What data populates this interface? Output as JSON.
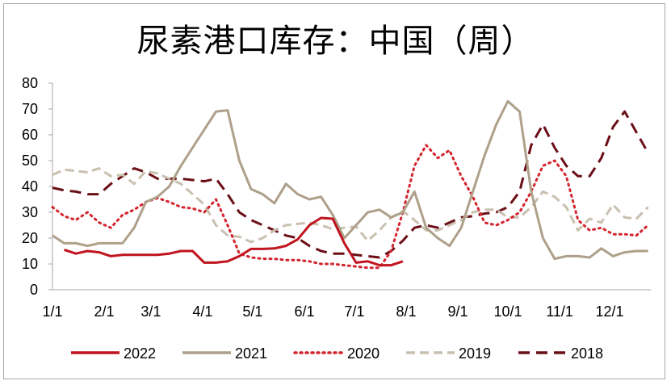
{
  "title": "尿素港口库存：中国（周）",
  "chart_data": {
    "type": "line",
    "title": "尿素港口库存：中国（周）",
    "xlabel": "",
    "ylabel": "",
    "ylim": [
      0,
      80
    ],
    "yticks": [
      "0",
      "10",
      "20",
      "30",
      "40",
      "50",
      "60",
      "70",
      "80"
    ],
    "xticks": [
      "1/1",
      "2/1",
      "3/1",
      "4/1",
      "5/1",
      "6/1",
      "7/1",
      "8/1",
      "9/1",
      "10/1",
      "11/1",
      "12/1"
    ],
    "grid": false,
    "legend_position": "bottom",
    "x_unit": "day of year",
    "series": [
      {
        "name": "2022",
        "color": "#c0141e",
        "style": "solid",
        "width": 3,
        "x": [
          7,
          14,
          21,
          28,
          35,
          42,
          49,
          56,
          63,
          70,
          77,
          84,
          91,
          98,
          105,
          112,
          119,
          126,
          133,
          140,
          147,
          154,
          161,
          168,
          175,
          182,
          189,
          196,
          203,
          210
        ],
        "values": [
          15.5,
          14,
          15,
          14.5,
          13,
          13.5,
          13.5,
          13.5,
          13.5,
          14,
          15,
          15,
          10.5,
          10.5,
          11,
          13,
          15.8,
          15.8,
          16,
          17,
          19.5,
          25,
          27.8,
          27.5,
          18,
          10.5,
          11,
          9.5,
          9.5,
          11
        ]
      },
      {
        "name": "2021",
        "color": "#aea08a",
        "style": "solid",
        "width": 3,
        "x": [
          0,
          7,
          14,
          21,
          28,
          35,
          42,
          49,
          56,
          63,
          70,
          77,
          84,
          91,
          98,
          105,
          112,
          119,
          126,
          133,
          140,
          147,
          154,
          161,
          168,
          175,
          182,
          189,
          196,
          203,
          210,
          217,
          224,
          231,
          238,
          245,
          252,
          259,
          266,
          273,
          280,
          287,
          294,
          301,
          308,
          315,
          322,
          329,
          336,
          343,
          350,
          357
        ],
        "values": [
          21,
          18,
          18,
          17,
          18,
          18,
          18,
          24,
          34,
          36,
          40,
          48,
          55,
          62,
          69,
          69.5,
          50,
          39,
          37,
          33.5,
          41,
          37,
          35,
          36,
          29,
          20,
          25,
          30,
          31,
          28,
          30,
          38,
          24,
          20,
          17,
          24,
          38,
          52,
          64,
          73,
          69,
          38,
          20,
          12,
          13,
          13,
          12.5,
          16,
          13,
          14.5,
          15,
          15
        ]
      },
      {
        "name": "2020",
        "color": "#d4242e",
        "style": "dotted",
        "width": 3,
        "x": [
          0,
          7,
          14,
          21,
          28,
          35,
          42,
          49,
          56,
          63,
          70,
          77,
          84,
          91,
          98,
          105,
          112,
          119,
          126,
          133,
          140,
          147,
          154,
          161,
          168,
          175,
          182,
          189,
          196,
          203,
          210,
          217,
          224,
          231,
          238,
          245,
          252,
          259,
          266,
          273,
          280,
          287,
          294,
          301,
          308,
          315,
          322,
          329,
          336,
          343,
          350,
          357
        ],
        "values": [
          32,
          28.5,
          27,
          30,
          26,
          24,
          29,
          31,
          34,
          35.5,
          34,
          32,
          31.5,
          30,
          35,
          25,
          14,
          12.5,
          12,
          12,
          11.5,
          11.5,
          11,
          10,
          10,
          9.5,
          9,
          8.5,
          8.5,
          15,
          30,
          48,
          56,
          51,
          54,
          44,
          36,
          26,
          25,
          27,
          30,
          38,
          48,
          50,
          44,
          27,
          23,
          24,
          21.5,
          21.5,
          21,
          25
        ]
      },
      {
        "name": "2019",
        "color": "#c9c0b0",
        "style": "dashed",
        "width": 3,
        "x": [
          0,
          7,
          14,
          21,
          28,
          35,
          42,
          49,
          56,
          63,
          70,
          77,
          84,
          91,
          98,
          105,
          112,
          119,
          126,
          133,
          140,
          147,
          154,
          161,
          168,
          175,
          182,
          189,
          196,
          203,
          210,
          217,
          224,
          231,
          238,
          245,
          252,
          259,
          266,
          273,
          280,
          287,
          294,
          301,
          308,
          315,
          322,
          329,
          336,
          343,
          350,
          357
        ],
        "values": [
          44.5,
          46.5,
          46,
          45.5,
          47,
          44,
          44.5,
          41,
          46,
          45,
          43,
          41,
          37,
          33,
          25,
          21,
          20.5,
          18.5,
          20,
          23,
          25,
          25.5,
          26,
          25,
          23.5,
          24,
          24.5,
          19,
          23,
          28,
          30.5,
          27,
          23,
          23,
          25,
          27,
          30,
          31,
          31,
          28,
          28,
          32,
          38,
          36,
          32,
          23,
          27.5,
          26,
          33,
          28,
          27.5,
          32
        ]
      },
      {
        "name": "2018",
        "color": "#6b0f17",
        "style": "dashed",
        "width": 3,
        "x": [
          0,
          7,
          14,
          21,
          28,
          35,
          42,
          49,
          56,
          63,
          70,
          77,
          84,
          91,
          98,
          105,
          112,
          119,
          126,
          133,
          140,
          147,
          154,
          161,
          168,
          175,
          182,
          189,
          196,
          203,
          210,
          217,
          224,
          231,
          238,
          245,
          252,
          259,
          266,
          273,
          280,
          287,
          294,
          301,
          308,
          315,
          322,
          329,
          336,
          343,
          350,
          357
        ],
        "values": [
          39.5,
          38.5,
          38,
          37,
          37,
          41,
          44,
          47,
          45.5,
          43,
          43,
          43,
          42.5,
          42,
          43,
          37,
          30,
          27,
          25,
          23,
          21,
          20,
          17,
          15,
          14,
          14,
          13.5,
          13,
          12.5,
          15,
          19,
          24,
          25,
          24,
          26,
          28,
          28.5,
          29.5,
          30,
          32,
          38,
          56,
          64,
          55,
          48,
          44,
          44,
          51,
          63,
          69,
          61,
          53
        ]
      }
    ]
  },
  "legend": [
    {
      "label": "2022"
    },
    {
      "label": "2021"
    },
    {
      "label": "2020"
    },
    {
      "label": "2019"
    },
    {
      "label": "2018"
    }
  ]
}
